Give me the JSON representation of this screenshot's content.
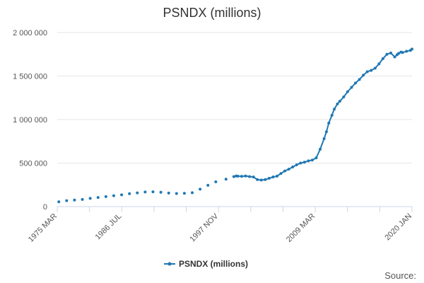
{
  "chart_data": {
    "type": "line",
    "title": "PSNDX (millions)",
    "xlabel": "",
    "ylabel": "",
    "x_tick_labels": [
      "1975 MAR",
      "1986 JUL",
      "1997 NOV",
      "2009 MAR",
      "2020 JAN"
    ],
    "y_ticks": [
      0,
      500000,
      1000000,
      1500000,
      2000000
    ],
    "y_tick_labels": [
      "0",
      "500 000",
      "1 000 000",
      "1 500 000",
      "2 000 000"
    ],
    "ylim": [
      0,
      2000000
    ],
    "xlim": [
      1975,
      2020.2
    ],
    "grid": "horizontal",
    "legend_position": "bottom",
    "series": [
      {
        "name": "PSNDX (millions)",
        "color": "#1f78b4",
        "x": [
          1975.2,
          1976.2,
          1977.2,
          1978.2,
          1979.2,
          1980.2,
          1981.2,
          1982.2,
          1983.2,
          1984.2,
          1985.2,
          1986.2,
          1987.2,
          1988.2,
          1989.2,
          1990.2,
          1991.2,
          1992.2,
          1993.2,
          1994.2,
          1995.2,
          1996.5,
          1997.5,
          1997.8,
          1998.0,
          1998.5,
          1999.0,
          1999.5,
          2000.0,
          2000.5,
          2001.0,
          2001.5,
          2002.0,
          2002.5,
          2003.0,
          2003.5,
          2004.0,
          2004.5,
          2005.0,
          2005.5,
          2006.0,
          2006.5,
          2007.0,
          2007.5,
          2008.0,
          2008.5,
          2009.0,
          2009.3,
          2009.6,
          2010.0,
          2010.3,
          2010.7,
          2011.0,
          2011.5,
          2012.0,
          2012.5,
          2013.0,
          2013.5,
          2014.0,
          2014.5,
          2015.0,
          2015.5,
          2016.0,
          2016.5,
          2017.0,
          2017.5,
          2018.0,
          2018.3,
          2018.5,
          2018.8,
          2019.0,
          2019.5,
          2020.0,
          2020.2
        ],
        "values": [
          55000,
          68000,
          75000,
          82000,
          95000,
          105000,
          115000,
          125000,
          135000,
          148000,
          158000,
          168000,
          170000,
          165000,
          155000,
          150000,
          152000,
          160000,
          200000,
          245000,
          285000,
          315000,
          345000,
          352000,
          350000,
          348000,
          352000,
          345000,
          340000,
          310000,
          305000,
          310000,
          325000,
          340000,
          350000,
          380000,
          410000,
          430000,
          455000,
          480000,
          500000,
          510000,
          525000,
          535000,
          560000,
          660000,
          780000,
          860000,
          960000,
          1050000,
          1120000,
          1180000,
          1210000,
          1260000,
          1320000,
          1370000,
          1420000,
          1460000,
          1510000,
          1550000,
          1565000,
          1590000,
          1640000,
          1700000,
          1750000,
          1765000,
          1720000,
          1745000,
          1760000,
          1775000,
          1770000,
          1785000,
          1795000,
          1810000
        ]
      }
    ]
  },
  "legend": {
    "label": "PSNDX (millions)"
  },
  "credits": {
    "label": "Source:"
  }
}
